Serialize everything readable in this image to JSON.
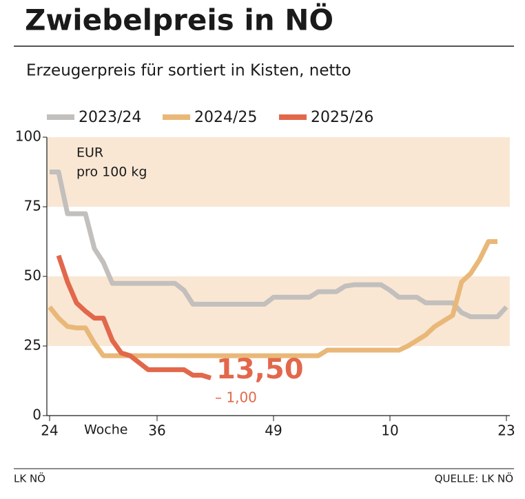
{
  "chart_data": {
    "type": "line",
    "title": "Zwiebelpreis in NÖ",
    "subtitle": "Erzeugerpreis für sortiert in Kisten, netto",
    "ylabel": [
      "EUR",
      "pro 100 kg"
    ],
    "xlabel": "Woche",
    "categories": [
      "24",
      null,
      null,
      null,
      null,
      null,
      null,
      null,
      null,
      null,
      null,
      null,
      "36",
      null,
      null,
      null,
      null,
      null,
      null,
      null,
      null,
      null,
      null,
      null,
      null,
      "49",
      null,
      null,
      null,
      null,
      null,
      null,
      null,
      null,
      null,
      null,
      null,
      null,
      "10",
      null,
      null,
      null,
      null,
      null,
      null,
      null,
      null,
      null,
      null,
      null,
      null,
      "23"
    ],
    "series": [
      {
        "name": "2023/24",
        "color": "#c2bfbc",
        "values": [
          87.5,
          87.5,
          72.5,
          72.5,
          72.5,
          60,
          55,
          47.5,
          47.5,
          47.5,
          47.5,
          47.5,
          47.5,
          47.5,
          47.5,
          45,
          40,
          40,
          40,
          40,
          40,
          40,
          40,
          40,
          40,
          42.5,
          42.5,
          42.5,
          42.5,
          42.5,
          44.5,
          44.5,
          44.5,
          46.5,
          47,
          47,
          47,
          47,
          45,
          42.5,
          42.5,
          42.5,
          40.5,
          40.5,
          40.5,
          40.5,
          37,
          35.5,
          35.5,
          35.5,
          35.5,
          39
        ]
      },
      {
        "name": "2024/25",
        "color": "#e9b878",
        "values": [
          39,
          35,
          32,
          31.5,
          31.5,
          26,
          21.5,
          21.5,
          21.5,
          21.5,
          21.5,
          21.5,
          21.5,
          21.5,
          21.5,
          21.5,
          21.5,
          21.5,
          21.5,
          21.5,
          21.5,
          21.5,
          21.5,
          21.5,
          21.5,
          21.5,
          21.5,
          21.5,
          21.5,
          21.5,
          21.5,
          23.5,
          23.5,
          23.5,
          23.5,
          23.5,
          23.5,
          23.5,
          23.5,
          23.5,
          25,
          27,
          29,
          32,
          34,
          36,
          48,
          51,
          56,
          62.5,
          62.5,
          null
        ]
      },
      {
        "name": "2025/26",
        "color": "#e2684b",
        "values": [
          null,
          57.5,
          48,
          40.5,
          37.5,
          35,
          35,
          27,
          22.5,
          21.5,
          19,
          16.5,
          16.5,
          16.5,
          16.5,
          16.5,
          14.5,
          14.5,
          13.5,
          null,
          null,
          null,
          null,
          null,
          null,
          null,
          null,
          null,
          null,
          null,
          null,
          null,
          null,
          null,
          null,
          null,
          null,
          null,
          null,
          null,
          null,
          null,
          null,
          null,
          null,
          null,
          null,
          null,
          null,
          null,
          null,
          null
        ]
      }
    ],
    "annotations": [
      "13,50",
      "– 1,00"
    ],
    "ylim": [
      0,
      100
    ],
    "yticks": [
      0,
      25,
      50,
      75,
      100
    ],
    "band_color": "#f9e7d4",
    "footer_left": "LK NÖ",
    "footer_right": "QUELLE: LK NÖ"
  }
}
